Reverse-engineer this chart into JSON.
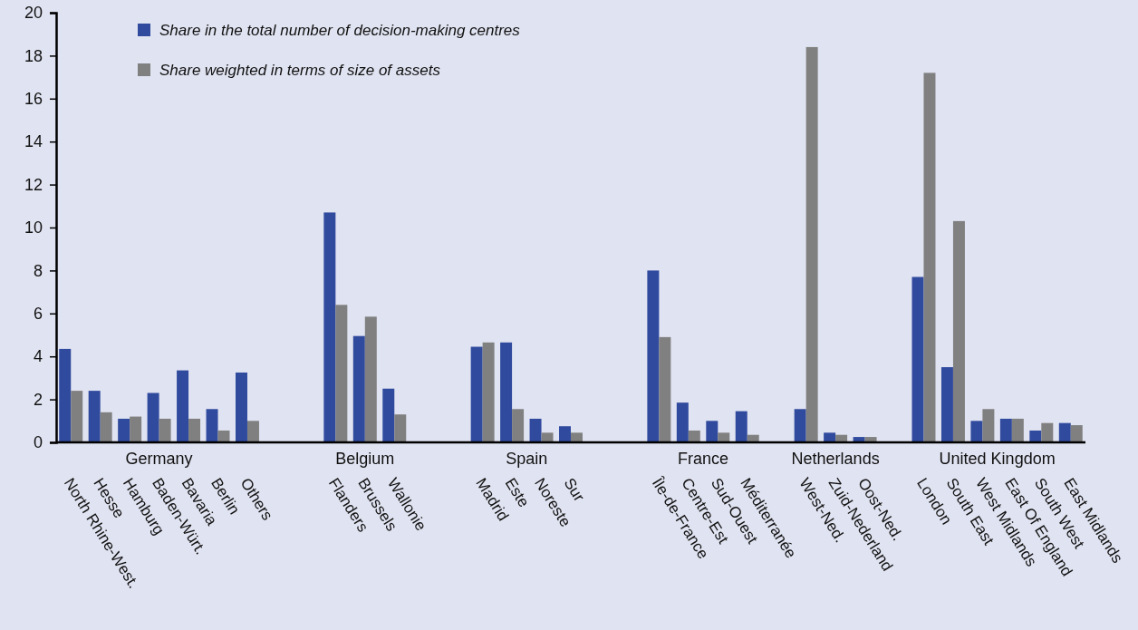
{
  "chart_data": {
    "type": "bar",
    "categories": [
      "North Rhine-West.",
      "Hesse",
      "Hamburg",
      "Baden-Würt.",
      "Bavaria",
      "Berlin",
      "Others",
      null,
      null,
      "Flanders",
      "Brussels",
      "Wallonie",
      null,
      null,
      "Madrid",
      "Este",
      "Noreste",
      "Sur",
      null,
      null,
      "Île-de-France",
      "Centre-Est",
      "Sud-Ouest",
      "Méditerranée",
      null,
      "West-Ned.",
      "Zuid-Nederland",
      "Oost-Ned.",
      null,
      "London",
      "South East",
      "West Midlands",
      "East Of England",
      "South West",
      "East Midlands"
    ],
    "series": [
      {
        "name": "Share in the total number of decision-making centres",
        "color": "#304a9e",
        "values": [
          4.35,
          2.4,
          1.1,
          2.3,
          3.35,
          1.55,
          3.25,
          null,
          null,
          10.7,
          4.95,
          2.5,
          null,
          null,
          4.45,
          4.65,
          1.1,
          0.75,
          null,
          null,
          8.0,
          1.85,
          1.0,
          1.45,
          null,
          1.55,
          0.45,
          0.25,
          null,
          7.7,
          3.5,
          1.0,
          1.1,
          0.55,
          0.9
        ]
      },
      {
        "name": "Share weighted in terms of size of assets",
        "color": "#808080",
        "values": [
          2.4,
          1.4,
          1.2,
          1.1,
          1.1,
          0.55,
          1.0,
          null,
          null,
          6.4,
          5.85,
          1.3,
          null,
          null,
          4.65,
          1.55,
          0.45,
          0.45,
          null,
          null,
          4.9,
          0.55,
          0.45,
          0.35,
          null,
          18.4,
          0.35,
          0.25,
          null,
          17.2,
          10.3,
          1.55,
          1.1,
          0.9,
          0.8
        ]
      }
    ],
    "annotations": [
      "Germany",
      "Belgium",
      "Spain",
      "France",
      "Netherlands",
      "United Kingdom"
    ],
    "ylim": [
      0,
      20
    ],
    "yticks": [
      0,
      2,
      4,
      6,
      8,
      10,
      12,
      14,
      16,
      18,
      20
    ],
    "legend": "top left",
    "grid": false
  }
}
